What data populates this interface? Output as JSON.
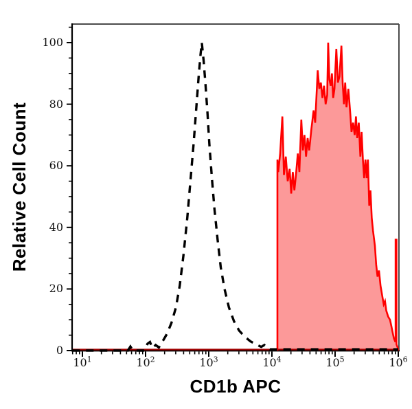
{
  "chart_data": {
    "type": "area",
    "subtype": "flow-cytometry-histogram-overlay",
    "title": "",
    "xlabel": "CD1b APC",
    "ylabel": "Relative Cell Count",
    "x_scale": "log10",
    "x_tick_base": "10",
    "x_tick_exponents": [
      1,
      2,
      3,
      4,
      5,
      6
    ],
    "x_range_log10": [
      0.84,
      6.01
    ],
    "y_ticks": [
      0,
      20,
      40,
      60,
      80,
      100
    ],
    "y_tick_labels": [
      "0",
      "20",
      "40",
      "60",
      "80",
      "100"
    ],
    "y_minor_step": 5,
    "ylim": [
      0,
      106
    ],
    "grid": false,
    "legend": null,
    "frame": true,
    "colors": {
      "stained_line": "#ff0000",
      "stained_fill": "#fc9999",
      "stained_baseline": "#a00000",
      "control_line": "#000000",
      "frame_dark": "#000000",
      "frame_gray": "#4a4a4a"
    },
    "series": [
      {
        "name": "dashed-control-histogram",
        "style": "dashed",
        "color": "#000000",
        "points_log10x_y": [
          [
            0.84,
            0
          ],
          [
            1.55,
            0
          ],
          [
            1.72,
            0
          ],
          [
            1.76,
            1.3
          ],
          [
            1.8,
            0
          ],
          [
            1.98,
            0
          ],
          [
            2.03,
            2.2
          ],
          [
            2.07,
            2.8
          ],
          [
            2.11,
            0.8
          ],
          [
            2.16,
            1.8
          ],
          [
            2.21,
            1.0
          ],
          [
            2.27,
            3.0
          ],
          [
            2.34,
            5.5
          ],
          [
            2.41,
            9
          ],
          [
            2.48,
            14
          ],
          [
            2.54,
            21
          ],
          [
            2.6,
            31
          ],
          [
            2.66,
            43
          ],
          [
            2.71,
            55
          ],
          [
            2.76,
            67
          ],
          [
            2.8,
            78
          ],
          [
            2.84,
            89
          ],
          [
            2.87,
            96
          ],
          [
            2.89,
            100
          ],
          [
            2.92,
            94
          ],
          [
            2.95,
            86
          ],
          [
            2.98,
            77
          ],
          [
            3.01,
            67
          ],
          [
            3.05,
            56
          ],
          [
            3.09,
            46
          ],
          [
            3.14,
            36
          ],
          [
            3.19,
            27
          ],
          [
            3.25,
            20
          ],
          [
            3.32,
            14
          ],
          [
            3.4,
            9.5
          ],
          [
            3.48,
            6.5
          ],
          [
            3.57,
            4.5
          ],
          [
            3.66,
            3.0
          ],
          [
            3.75,
            2.0
          ],
          [
            3.83,
            1.2
          ],
          [
            3.88,
            1.8
          ],
          [
            3.92,
            0.8
          ],
          [
            3.97,
            0.4
          ],
          [
            4.05,
            0.4
          ],
          [
            6.0,
            0.4
          ]
        ]
      },
      {
        "name": "cd1b-apc-stained-histogram",
        "style": "solid-filled",
        "color": "#ff0000",
        "fill_color": "#fc9999",
        "baseline_color": "#a00000",
        "points_log10x_y": [
          [
            4.087,
            0
          ],
          [
            4.087,
            62
          ],
          [
            4.1,
            58
          ],
          [
            4.13,
            64
          ],
          [
            4.165,
            76
          ],
          [
            4.19,
            57
          ],
          [
            4.22,
            63
          ],
          [
            4.25,
            55
          ],
          [
            4.28,
            59
          ],
          [
            4.305,
            51
          ],
          [
            4.33,
            58
          ],
          [
            4.355,
            52
          ],
          [
            4.38,
            57
          ],
          [
            4.41,
            64
          ],
          [
            4.435,
            58
          ],
          [
            4.465,
            75
          ],
          [
            4.49,
            65
          ],
          [
            4.515,
            70
          ],
          [
            4.54,
            63
          ],
          [
            4.565,
            69
          ],
          [
            4.59,
            65
          ],
          [
            4.625,
            72
          ],
          [
            4.66,
            78
          ],
          [
            4.685,
            74
          ],
          [
            4.725,
            91
          ],
          [
            4.75,
            85
          ],
          [
            4.775,
            87
          ],
          [
            4.8,
            82
          ],
          [
            4.825,
            86
          ],
          [
            4.85,
            80
          ],
          [
            4.875,
            83
          ],
          [
            4.89,
            100
          ],
          [
            4.91,
            88
          ],
          [
            4.93,
            86
          ],
          [
            4.95,
            90
          ],
          [
            4.97,
            82
          ],
          [
            4.99,
            85
          ],
          [
            5.02,
            98
          ],
          [
            5.045,
            87
          ],
          [
            5.07,
            89
          ],
          [
            5.1,
            99
          ],
          [
            5.12,
            87
          ],
          [
            5.14,
            80
          ],
          [
            5.16,
            87
          ],
          [
            5.18,
            79
          ],
          [
            5.21,
            85
          ],
          [
            5.24,
            77
          ],
          [
            5.26,
            71
          ],
          [
            5.285,
            74
          ],
          [
            5.31,
            70
          ],
          [
            5.33,
            76
          ],
          [
            5.35,
            69
          ],
          [
            5.375,
            74
          ],
          [
            5.4,
            63
          ],
          [
            5.42,
            71
          ],
          [
            5.44,
            62
          ],
          [
            5.46,
            56
          ],
          [
            5.48,
            62
          ],
          [
            5.5,
            56
          ],
          [
            5.52,
            62
          ],
          [
            5.54,
            47
          ],
          [
            5.56,
            52
          ],
          [
            5.58,
            43
          ],
          [
            5.6,
            39
          ],
          [
            5.63,
            34
          ],
          [
            5.65,
            28
          ],
          [
            5.672,
            24
          ],
          [
            5.695,
            26
          ],
          [
            5.72,
            21
          ],
          [
            5.745,
            18
          ],
          [
            5.77,
            15
          ],
          [
            5.79,
            16
          ],
          [
            5.81,
            13
          ],
          [
            5.84,
            11
          ],
          [
            5.87,
            10
          ],
          [
            5.89,
            8
          ],
          [
            5.91,
            6
          ],
          [
            5.93,
            4
          ],
          [
            5.95,
            3
          ],
          [
            5.958,
            3
          ],
          [
            5.958,
            36
          ],
          [
            5.972,
            36
          ],
          [
            5.972,
            2
          ],
          [
            5.99,
            1
          ],
          [
            6.0,
            0
          ]
        ]
      }
    ]
  }
}
